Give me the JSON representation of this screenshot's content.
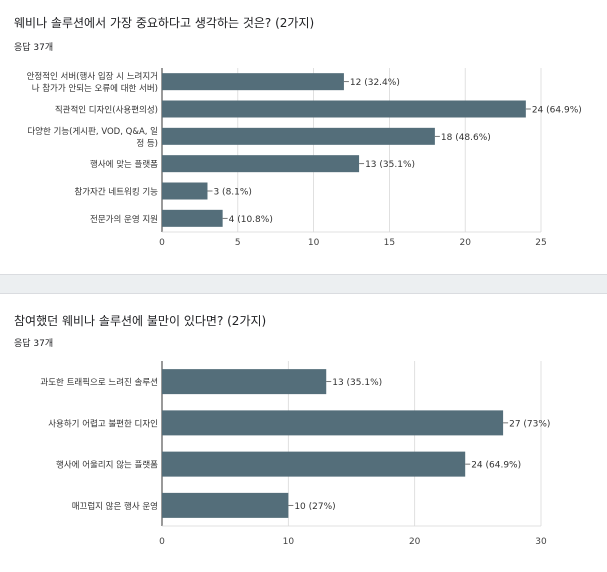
{
  "questions": [
    {
      "title": "웨비나 솔루션에서 가장 중요하다고 생각하는 것은? (2가지)",
      "responses": "응답 37개"
    },
    {
      "title": "참여했던 웨비나 솔루션에 불만이 있다면? (2가지)",
      "responses": "응답 37개"
    }
  ],
  "colors": {
    "bar": "#546e7a",
    "grid": "#d9d9d9",
    "axis": "#333333"
  },
  "chart_data": [
    {
      "type": "bar",
      "orientation": "horizontal",
      "title": "웨비나 솔루션에서 가장 중요하다고 생각하는 것은? (2가지)",
      "categories": [
        [
          "안정적인 서버(행사 입장 시 느려지거",
          "나 참가가 안되는 오류에 대한 서버)"
        ],
        [
          "직관적인 디자인(사용편의성)"
        ],
        [
          "다양한 기능(게시판, VOD, Q&A, 일",
          "정 등)"
        ],
        [
          "행사에 맞는 플랫폼"
        ],
        [
          "참가자간 네트워킹 기능"
        ],
        [
          "전문가의 운영 지원"
        ]
      ],
      "values": [
        12,
        24,
        18,
        13,
        3,
        4
      ],
      "data_labels": [
        "12 (32.4%)",
        "24 (64.9%)",
        "18 (48.6%)",
        "13 (35.1%)",
        "3 (8.1%)",
        "4 (10.8%)"
      ],
      "xlim": [
        0,
        25
      ],
      "xticks": [
        0,
        5,
        10,
        15,
        20,
        25
      ],
      "grid": true
    },
    {
      "type": "bar",
      "orientation": "horizontal",
      "title": "참여했던 웨비나 솔루션에 불만이 있다면? (2가지)",
      "categories": [
        [
          "과도한 트래픽으로 느려진 솔루션"
        ],
        [
          "사용하기 어렵고 불편한 디자인"
        ],
        [
          "행사에 어울리지 않는 플랫폼"
        ],
        [
          "매끄럽지 않은 행사 운영"
        ]
      ],
      "values": [
        13,
        27,
        24,
        10
      ],
      "data_labels": [
        "13 (35.1%)",
        "27 (73%)",
        "24 (64.9%)",
        "10 (27%)"
      ],
      "xlim": [
        0,
        30
      ],
      "xticks": [
        0,
        10,
        20,
        30
      ],
      "grid": true
    }
  ]
}
